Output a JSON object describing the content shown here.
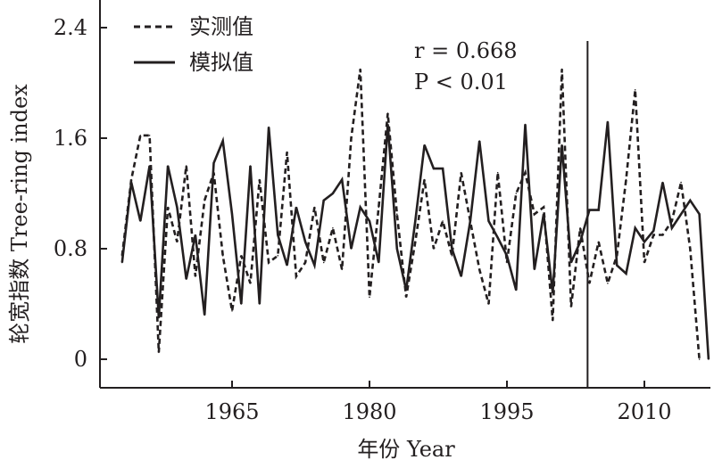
{
  "chart_data": {
    "type": "line",
    "xlabel": "年份 Year",
    "ylabel": "轮宽指数 Tree-ring index",
    "xlim": [
      1951,
      2018
    ],
    "ylim": [
      -0.2,
      2.55
    ],
    "xticks": [
      1965,
      1980,
      1995,
      2010
    ],
    "yticks": [
      0,
      0.8,
      1.6,
      2.4
    ],
    "ytick_labels": [
      "0",
      "0.8",
      "1.6",
      "2.4"
    ],
    "divider_year": 2003.8,
    "annotation": {
      "r_text": "r = 0.668",
      "p_text": "P < 0.01"
    },
    "legend_position": "top-left",
    "colors": {
      "line": "#231f20",
      "background": "#ffffff"
    },
    "series": [
      {
        "name": "实测值",
        "style": "dashed",
        "x": [
          1953,
          1954,
          1955,
          1956,
          1957,
          1958,
          1959,
          1960,
          1961,
          1962,
          1963,
          1964,
          1965,
          1966,
          1967,
          1968,
          1969,
          1970,
          1971,
          1972,
          1973,
          1974,
          1975,
          1976,
          1977,
          1978,
          1979,
          1980,
          1981,
          1982,
          1983,
          1984,
          1985,
          1986,
          1987,
          1988,
          1989,
          1990,
          1991,
          1992,
          1993,
          1994,
          1995,
          1996,
          1997,
          1998,
          1999,
          2000,
          2001,
          2002,
          2003,
          2004,
          2005,
          2006,
          2007,
          2008,
          2009,
          2010,
          2011,
          2012,
          2013,
          2014,
          2015,
          2016
        ],
        "values": [
          0.75,
          1.3,
          1.62,
          1.62,
          0.05,
          1.1,
          0.85,
          1.4,
          0.6,
          1.15,
          1.35,
          0.75,
          0.35,
          0.75,
          0.55,
          1.3,
          0.7,
          0.75,
          1.5,
          0.6,
          0.7,
          1.1,
          0.7,
          0.95,
          0.65,
          1.6,
          2.1,
          0.45,
          1.1,
          1.78,
          1.05,
          0.45,
          0.85,
          1.3,
          0.8,
          1.0,
          0.75,
          1.35,
          1.0,
          0.65,
          0.4,
          1.35,
          0.7,
          1.2,
          1.35,
          1.05,
          1.1,
          0.28,
          2.1,
          0.38,
          0.95,
          0.55,
          0.85,
          0.55,
          0.75,
          1.3,
          1.95,
          0.7,
          0.9,
          0.9,
          1.0,
          1.28,
          0.8,
          0.0
        ]
      },
      {
        "name": "模拟值",
        "style": "solid",
        "x": [
          1953,
          1954,
          1955,
          1956,
          1957,
          1958,
          1959,
          1960,
          1961,
          1962,
          1963,
          1964,
          1965,
          1966,
          1967,
          1968,
          1969,
          1970,
          1971,
          1972,
          1973,
          1974,
          1975,
          1976,
          1977,
          1978,
          1979,
          1980,
          1981,
          1982,
          1983,
          1984,
          1985,
          1986,
          1987,
          1988,
          1989,
          1990,
          1991,
          1992,
          1993,
          1994,
          1995,
          1996,
          1997,
          1998,
          1999,
          2000,
          2001,
          2002,
          2003,
          2004,
          2005,
          2006,
          2007,
          2008,
          2009,
          2010,
          2011,
          2012,
          2013,
          2014,
          2015,
          2016,
          2017
        ],
        "values": [
          0.7,
          1.28,
          1.0,
          1.4,
          0.3,
          1.4,
          1.1,
          0.58,
          0.9,
          0.32,
          1.42,
          1.58,
          1.05,
          0.4,
          1.4,
          0.4,
          1.68,
          0.9,
          0.68,
          1.1,
          0.85,
          0.68,
          1.15,
          1.2,
          1.3,
          0.8,
          1.1,
          1.0,
          0.7,
          1.7,
          0.8,
          0.5,
          1.0,
          1.55,
          1.38,
          1.38,
          0.8,
          0.6,
          1.0,
          1.58,
          1.0,
          0.88,
          0.75,
          0.5,
          1.7,
          0.65,
          1.05,
          0.48,
          1.55,
          0.7,
          0.85,
          1.08,
          1.08,
          1.72,
          0.68,
          0.62,
          0.95,
          0.85,
          0.93,
          1.28,
          0.95,
          1.05,
          1.15,
          1.05,
          0.0
        ]
      }
    ]
  }
}
